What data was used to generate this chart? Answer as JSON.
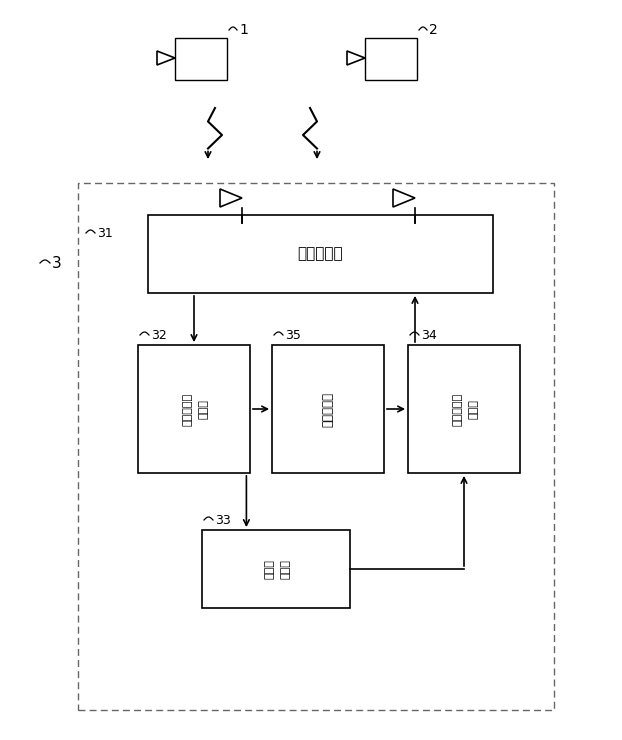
{
  "bg_color": "#ffffff",
  "line_color": "#000000",
  "mobile1_label": "1",
  "mobile2_label": "2",
  "system_label": "3",
  "box31_label": "31",
  "box32_label": "32",
  "box33_label": "33",
  "box34_label": "34",
  "box35_label": "35",
  "text31": "無線制御部",
  "text32_line1": "受信データ",
  "text32_line2": "処理部",
  "text33_line1": "データ",
  "text33_line2": "記憶部",
  "text34_line1": "送信データ",
  "text34_line2": "処理部",
  "text35": "通信制御部"
}
